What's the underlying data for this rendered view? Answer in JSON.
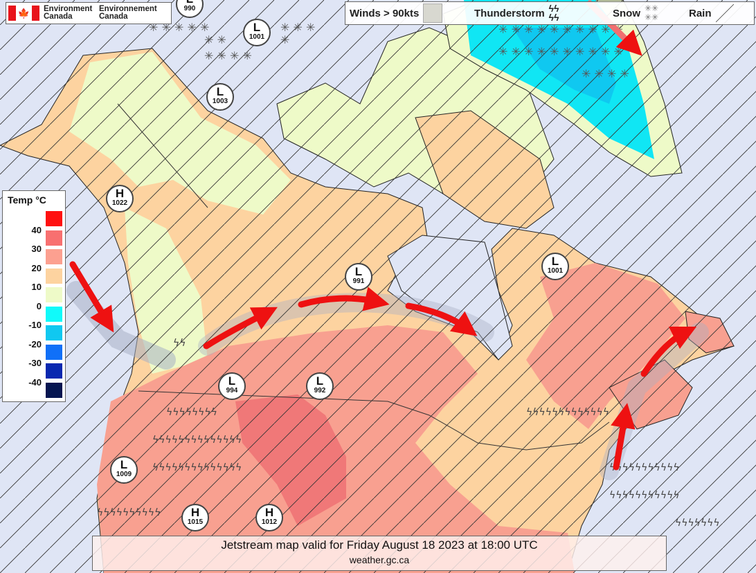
{
  "logo": {
    "en_line1": "Environment",
    "en_line2": "Canada",
    "fr_line1": "Environnement",
    "fr_line2": "Canada"
  },
  "legend": {
    "items": [
      {
        "label": "Winds > 90kts",
        "symbol": "grey-swath"
      },
      {
        "label": "Thunderstorm",
        "symbol": "lightning-icon"
      },
      {
        "label": "Snow",
        "symbol": "asterisk-icon"
      },
      {
        "label": "Rain",
        "symbol": "diagonal-line-icon"
      }
    ]
  },
  "temp_legend": {
    "title": "Temp °C",
    "levels": [
      {
        "label": "",
        "color": "#ff1010"
      },
      {
        "label": "40",
        "color": "#f87070"
      },
      {
        "label": "30",
        "color": "#fca090"
      },
      {
        "label": "20",
        "color": "#fdd3a0"
      },
      {
        "label": "10",
        "color": "#eefac8"
      },
      {
        "label": "0",
        "color": "#10fafa"
      },
      {
        "label": "-10",
        "color": "#10c8f0"
      },
      {
        "label": "-20",
        "color": "#1070f8"
      },
      {
        "label": "-30",
        "color": "#0828b0"
      },
      {
        "label": "-40",
        "color": "#051550"
      }
    ]
  },
  "pressure_centers": [
    {
      "type": "L",
      "value": "990"
    },
    {
      "type": "L",
      "value": "1001"
    },
    {
      "type": "L",
      "value": "1003"
    },
    {
      "type": "H",
      "value": "1022"
    },
    {
      "type": "L",
      "value": "991"
    },
    {
      "type": "L",
      "value": "1001"
    },
    {
      "type": "L",
      "value": "994"
    },
    {
      "type": "L",
      "value": "992"
    },
    {
      "type": "L",
      "value": "1009"
    },
    {
      "type": "H",
      "value": "1015"
    },
    {
      "type": "H",
      "value": "1012"
    }
  ],
  "caption": {
    "line1": "Jetstream map valid for Friday August 18 2023 at 18:00 UTC",
    "line2": "weather.gc.ca"
  },
  "colors": {
    "background": "#dfe5f5",
    "jet_arrow": "#ee1111",
    "land_cool": "#eefac8",
    "land_warm": "#fdd3a0",
    "land_hot": "#f8a090",
    "land_hotter": "#f07878"
  }
}
